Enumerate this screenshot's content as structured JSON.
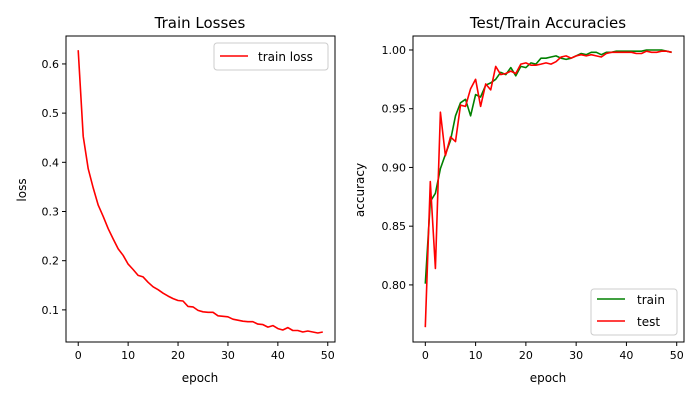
{
  "chart_data": [
    {
      "type": "line",
      "title": "Train Losses",
      "xlabel": "epoch",
      "ylabel": "loss",
      "xlim": [
        -2.45,
        51.45
      ],
      "ylim": [
        0.0347,
        0.6568
      ],
      "xticks": [
        0,
        10,
        20,
        30,
        40,
        50
      ],
      "xtick_labels": [
        "0",
        "10",
        "20",
        "30",
        "40",
        "50"
      ],
      "yticks": [
        0.1,
        0.2,
        0.3,
        0.4,
        0.5,
        0.6
      ],
      "ytick_labels": [
        "0.1",
        "0.2",
        "0.3",
        "0.4",
        "0.5",
        "0.6"
      ],
      "grid": false,
      "legend_position": "upper-right",
      "series": [
        {
          "name": "train loss",
          "color": "#ff0000",
          "x": [
            0,
            1,
            2,
            3,
            4,
            5,
            6,
            7,
            8,
            9,
            10,
            11,
            12,
            13,
            14,
            15,
            16,
            17,
            18,
            19,
            20,
            21,
            22,
            23,
            24,
            25,
            26,
            27,
            28,
            29,
            30,
            31,
            32,
            33,
            34,
            35,
            36,
            37,
            38,
            39,
            40,
            41,
            42,
            43,
            44,
            45,
            46,
            47,
            48,
            49
          ],
          "y": [
            0.628,
            0.453,
            0.387,
            0.348,
            0.313,
            0.29,
            0.265,
            0.244,
            0.224,
            0.211,
            0.193,
            0.182,
            0.17,
            0.167,
            0.156,
            0.147,
            0.141,
            0.134,
            0.128,
            0.123,
            0.119,
            0.118,
            0.107,
            0.106,
            0.099,
            0.096,
            0.095,
            0.095,
            0.088,
            0.087,
            0.086,
            0.081,
            0.079,
            0.077,
            0.076,
            0.076,
            0.071,
            0.07,
            0.065,
            0.068,
            0.062,
            0.059,
            0.064,
            0.058,
            0.058,
            0.055,
            0.057,
            0.055,
            0.053,
            0.055
          ]
        }
      ]
    },
    {
      "type": "line",
      "title": "Test/Train Accuracies",
      "xlabel": "epoch",
      "ylabel": "accuracy",
      "xlim": [
        -2.45,
        51.45
      ],
      "ylim": [
        0.7514,
        1.0119
      ],
      "xticks": [
        0,
        10,
        20,
        30,
        40,
        50
      ],
      "xtick_labels": [
        "0",
        "10",
        "20",
        "30",
        "40",
        "50"
      ],
      "yticks": [
        0.8,
        0.85,
        0.9,
        0.95,
        1.0
      ],
      "ytick_labels": [
        "0.80",
        "0.85",
        "0.90",
        "0.95",
        "1.00"
      ],
      "grid": false,
      "legend_position": "lower-right",
      "series": [
        {
          "name": "train",
          "color": "#008000",
          "x": [
            0,
            1,
            2,
            3,
            4,
            5,
            6,
            7,
            8,
            9,
            10,
            11,
            12,
            13,
            14,
            15,
            16,
            17,
            18,
            19,
            20,
            21,
            22,
            23,
            24,
            25,
            26,
            27,
            28,
            29,
            30,
            31,
            32,
            33,
            34,
            35,
            36,
            37,
            38,
            39,
            40,
            41,
            42,
            43,
            44,
            45,
            46,
            47,
            48,
            49
          ],
          "y": [
            0.801,
            0.871,
            0.878,
            0.899,
            0.911,
            0.923,
            0.944,
            0.955,
            0.958,
            0.944,
            0.962,
            0.96,
            0.97,
            0.972,
            0.975,
            0.981,
            0.979,
            0.985,
            0.978,
            0.986,
            0.985,
            0.989,
            0.988,
            0.993,
            0.993,
            0.994,
            0.995,
            0.993,
            0.992,
            0.993,
            0.995,
            0.997,
            0.996,
            0.998,
            0.998,
            0.996,
            0.998,
            0.998,
            0.999,
            0.999,
            0.999,
            0.999,
            0.999,
            0.999,
            1.0,
            1.0,
            1.0,
            1.0,
            0.999,
            0.998
          ]
        },
        {
          "name": "test",
          "color": "#ff0000",
          "x": [
            0,
            1,
            2,
            3,
            4,
            5,
            6,
            7,
            8,
            9,
            10,
            11,
            12,
            13,
            14,
            15,
            16,
            17,
            18,
            19,
            20,
            21,
            22,
            23,
            24,
            25,
            26,
            27,
            28,
            29,
            30,
            31,
            32,
            33,
            34,
            35,
            36,
            37,
            38,
            39,
            40,
            41,
            42,
            43,
            44,
            45,
            46,
            47,
            48,
            49
          ],
          "y": [
            0.764,
            0.888,
            0.814,
            0.947,
            0.91,
            0.926,
            0.922,
            0.953,
            0.952,
            0.967,
            0.975,
            0.952,
            0.971,
            0.966,
            0.986,
            0.979,
            0.98,
            0.982,
            0.98,
            0.988,
            0.989,
            0.987,
            0.987,
            0.988,
            0.989,
            0.988,
            0.99,
            0.994,
            0.995,
            0.993,
            0.995,
            0.996,
            0.995,
            0.996,
            0.995,
            0.994,
            0.997,
            0.998,
            0.998,
            0.998,
            0.998,
            0.998,
            0.997,
            0.997,
            0.999,
            0.998,
            0.998,
            0.999,
            0.999,
            0.998
          ]
        }
      ]
    }
  ]
}
